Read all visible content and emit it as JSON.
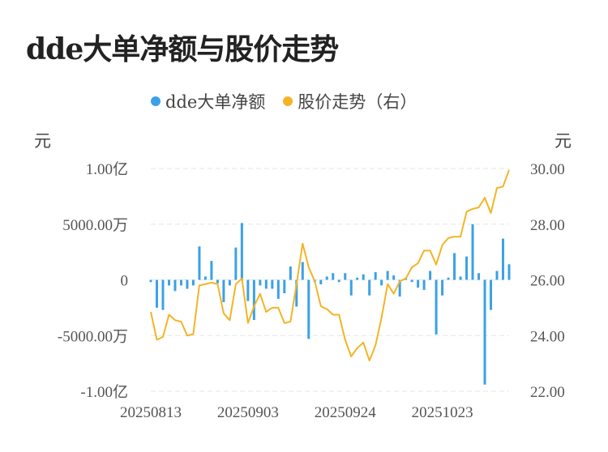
{
  "title": "dde大单净额与股价走势",
  "legend": {
    "series1": "dde大单净额",
    "series2": "股价走势（右）"
  },
  "colors": {
    "bar": "#3ba1e6",
    "line": "#f3b426",
    "grid": "#e6e6e6",
    "text": "#555555"
  },
  "units": {
    "left": "元",
    "right": "元"
  },
  "chart_data": {
    "type": "bar+line",
    "left_axis": {
      "ticks": [
        {
          "value": 100000000,
          "label": "1.00亿"
        },
        {
          "value": 50000000,
          "label": "5000.00万"
        },
        {
          "value": 0,
          "label": "0"
        },
        {
          "value": -50000000,
          "label": "-5000.00万"
        },
        {
          "value": -100000000,
          "label": "-1.00亿"
        }
      ],
      "ylim": [
        -100000000,
        100000000
      ]
    },
    "right_axis": {
      "ticks": [
        {
          "value": 30,
          "label": "30.00"
        },
        {
          "value": 28,
          "label": "28.00"
        },
        {
          "value": 26,
          "label": "26.00"
        },
        {
          "value": 24,
          "label": "24.00"
        },
        {
          "value": 22,
          "label": "22.00"
        }
      ],
      "ylim": [
        22,
        30
      ]
    },
    "x_labels": [
      {
        "index": 0,
        "label": "20250813"
      },
      {
        "index": 16,
        "label": "20250903"
      },
      {
        "index": 32,
        "label": "20250924"
      },
      {
        "index": 48,
        "label": "20251023"
      }
    ],
    "series": [
      {
        "name": "dde大单净额",
        "kind": "bar",
        "values": [
          -2000000,
          -25000000,
          -27000000,
          -5000000,
          -10000000,
          -5000000,
          -8000000,
          -5000000,
          30000000,
          3000000,
          17000000,
          -3000000,
          -20000000,
          -5000000,
          29000000,
          51000000,
          -19000000,
          -36000000,
          -5000000,
          -8000000,
          -8000000,
          -17000000,
          -12000000,
          12000000,
          -24000000,
          16000000,
          -53000000,
          -2000000,
          -4000000,
          3000000,
          6000000,
          -2000000,
          6000000,
          -14000000,
          2000000,
          5000000,
          -14000000,
          7000000,
          -5000000,
          8000000,
          4000000,
          -15000000,
          2000000,
          -2000000,
          -7000000,
          -9000000,
          8000000,
          -49000000,
          -14000000,
          2000000,
          24000000,
          3000000,
          21000000,
          50000000,
          6000000,
          -94000000,
          -27000000,
          8000000,
          37000000,
          14000000
        ],
        "ylim": [
          -100000000,
          100000000
        ]
      },
      {
        "name": "股价走势（右）",
        "kind": "line",
        "values": [
          24.85,
          23.85,
          23.95,
          24.75,
          24.55,
          24.5,
          24.0,
          24.05,
          25.8,
          25.85,
          25.9,
          25.85,
          24.8,
          24.55,
          25.85,
          26.05,
          24.45,
          25.05,
          25.5,
          24.85,
          25.0,
          25.0,
          24.45,
          24.5,
          25.85,
          27.3,
          26.45,
          25.95,
          25.05,
          24.95,
          24.75,
          24.75,
          23.85,
          23.25,
          23.55,
          23.75,
          23.1,
          23.65,
          24.65,
          25.85,
          25.5,
          25.95,
          26.05,
          26.45,
          26.6,
          27.05,
          27.05,
          26.55,
          27.25,
          27.5,
          27.55,
          27.55,
          28.45,
          28.55,
          28.6,
          28.95,
          28.4,
          29.3,
          29.35,
          29.95
        ],
        "ylim": [
          22,
          30
        ]
      }
    ]
  }
}
